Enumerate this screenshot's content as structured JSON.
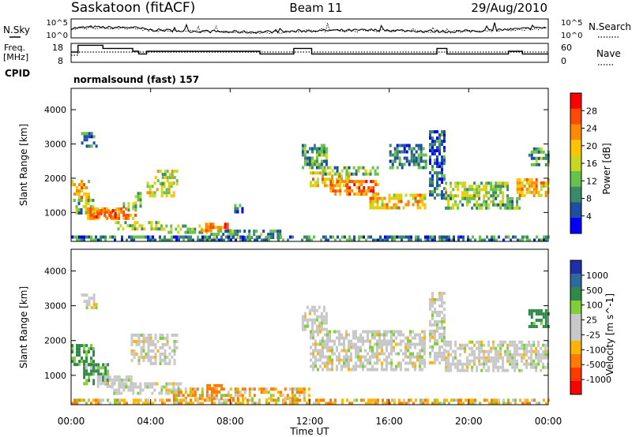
{
  "header": {
    "station": "Saskatoon (fitACF)",
    "beam": "Beam 11",
    "date": "29/Aug/2010"
  },
  "top_panels": {
    "nsky_label": "N.Sky",
    "nsky_ticks": [
      "10^5",
      "10^0"
    ],
    "nsearch_label": "N.Search",
    "nsearch_ticks": [
      "10^5",
      "10^0"
    ],
    "freq_label_1": "Freq.",
    "freq_label_2": "[MHz]",
    "freq_ticks": [
      "18",
      "8"
    ],
    "freq_ylim": [
      8,
      18
    ],
    "nave_label": "Nave",
    "nave_ticks": [
      "60",
      "0"
    ],
    "nave_ylim": [
      0,
      60
    ],
    "cpid_label": "CPID",
    "cpid_value": "normalsound (fast) 157"
  },
  "colors": {
    "power_scale": [
      "#0000ff",
      "#1d4fa0",
      "#3a8a6a",
      "#66c24a",
      "#c8d820",
      "#ffc400",
      "#ff8a00",
      "#ff4a00",
      "#ff0000"
    ],
    "velocity_scale": [
      "#1f2fa8",
      "#2e6aa0",
      "#2f8a4a",
      "#7fcf3a",
      "#c8c8c8",
      "#c8c8c8",
      "#ffb400",
      "#ff7a00",
      "#ff3a00",
      "#ff0000"
    ]
  },
  "chart_data": [
    {
      "type": "line",
      "name": "nsky-nsearch-panel",
      "x": [
        0,
        1,
        2,
        3,
        4,
        5,
        6,
        7,
        8,
        9,
        10,
        11,
        12,
        13,
        14,
        15,
        16,
        17,
        18,
        19,
        20,
        21,
        22,
        23,
        24
      ],
      "series": [
        {
          "name": "N.Sky",
          "values": [
            2.4,
            2.8,
            2.6,
            2.7,
            1.9,
            1.7,
            1.5,
            1.4,
            1.3,
            1.2,
            1.3,
            1.4,
            1.6,
            1.7,
            1.7,
            1.8,
            1.8,
            1.6,
            1.5,
            1.4,
            1.5,
            1.7,
            2.0,
            2.3,
            2.6
          ]
        },
        {
          "name": "N.Search",
          "values": [
            2.2,
            2.6,
            2.5,
            2.5,
            1.8,
            1.6,
            1.4,
            1.3,
            1.2,
            1.1,
            1.2,
            1.3,
            1.5,
            1.6,
            1.6,
            1.7,
            1.7,
            1.5,
            1.4,
            1.3,
            1.4,
            1.6,
            1.9,
            2.2,
            2.5
          ]
        }
      ],
      "ylim": [
        0,
        5
      ]
    },
    {
      "type": "line",
      "name": "freq-nave-panel",
      "xlim": [
        0,
        24
      ],
      "freq_steps": [
        [
          0,
          13.5
        ],
        [
          0.35,
          17.8
        ],
        [
          1.6,
          15.8
        ],
        [
          3.1,
          14.0
        ],
        [
          3.4,
          12.3
        ],
        [
          3.8,
          14.0
        ],
        [
          9.5,
          12.3
        ],
        [
          10.8,
          12.3
        ],
        [
          11.2,
          15.8
        ],
        [
          12.1,
          12.3
        ],
        [
          17.8,
          12.3
        ],
        [
          18.4,
          15.8
        ],
        [
          18.9,
          12.3
        ],
        [
          21.5,
          12.3
        ],
        [
          22.0,
          14.0
        ],
        [
          22.7,
          12.3
        ],
        [
          24.0,
          12.3
        ]
      ],
      "nave_steps": [
        [
          0,
          21
        ],
        [
          0.35,
          33
        ],
        [
          24.0,
          33
        ]
      ],
      "freq_ylim": [
        8,
        18
      ],
      "nave_ylim": [
        0,
        60
      ]
    },
    {
      "type": "heatmap",
      "name": "power",
      "xlabel": "",
      "ylabel": "Slant Range [km]",
      "xlim": [
        0,
        24
      ],
      "ylim": [
        180,
        4600
      ],
      "yticks": [
        1000,
        2000,
        3000,
        4000
      ],
      "colorbar_label": "Power [dB]",
      "colorbar_ticks": [
        "28",
        "24",
        "20",
        "16",
        "12",
        "8",
        "4"
      ],
      "colorbar_range": [
        0,
        32
      ],
      "regions": [
        {
          "t": [
            0.0,
            0.9
          ],
          "r": [
            1350,
            1950
          ],
          "v": 20
        },
        {
          "t": [
            0.1,
            1.1
          ],
          "r": [
            1000,
            1400
          ],
          "v": 12
        },
        {
          "t": [
            0.8,
            3.2
          ],
          "r": [
            800,
            1150
          ],
          "v": 22
        },
        {
          "t": [
            1.1,
            2.2
          ],
          "r": [
            880,
            1100
          ],
          "v": 28
        },
        {
          "t": [
            0.5,
            1.3
          ],
          "r": [
            2900,
            3350
          ],
          "v": 8
        },
        {
          "t": [
            2.6,
            3.2
          ],
          "r": [
            1100,
            1300
          ],
          "v": 14
        },
        {
          "t": [
            3.2,
            3.5
          ],
          "r": [
            1050,
            1600
          ],
          "v": 14
        },
        {
          "t": [
            3.8,
            5.2
          ],
          "r": [
            1500,
            1900
          ],
          "v": 18
        },
        {
          "t": [
            4.2,
            5.3
          ],
          "r": [
            1800,
            2250
          ],
          "v": 16
        },
        {
          "t": [
            2.2,
            4.5
          ],
          "r": [
            500,
            750
          ],
          "v": 14
        },
        {
          "t": [
            4.5,
            7.0
          ],
          "r": [
            400,
            650
          ],
          "v": 12
        },
        {
          "t": [
            6.5,
            8.0
          ],
          "r": [
            480,
            700
          ],
          "v": 24
        },
        {
          "t": [
            7.0,
            10.5
          ],
          "r": [
            300,
            500
          ],
          "v": 10
        },
        {
          "t": [
            8.2,
            8.6
          ],
          "r": [
            1050,
            1250
          ],
          "v": 6
        },
        {
          "t": [
            0.0,
            24.0
          ],
          "r": [
            200,
            330
          ],
          "v": 8
        },
        {
          "t": [
            11.6,
            12.8
          ],
          "r": [
            2300,
            3000
          ],
          "v": 10
        },
        {
          "t": [
            12.0,
            14.0
          ],
          "r": [
            1800,
            2200
          ],
          "v": 20
        },
        {
          "t": [
            13.0,
            15.5
          ],
          "r": [
            1500,
            1950
          ],
          "v": 24
        },
        {
          "t": [
            15.0,
            17.8
          ],
          "r": [
            1100,
            1550
          ],
          "v": 20
        },
        {
          "t": [
            12.5,
            15.5
          ],
          "r": [
            2100,
            2350
          ],
          "v": 12
        },
        {
          "t": [
            16.0,
            17.8
          ],
          "r": [
            2300,
            3000
          ],
          "v": 8
        },
        {
          "t": [
            18.0,
            18.8
          ],
          "r": [
            1400,
            3400
          ],
          "v": 6
        },
        {
          "t": [
            18.8,
            22.0
          ],
          "r": [
            1500,
            1900
          ],
          "v": 14
        },
        {
          "t": [
            18.8,
            22.5
          ],
          "r": [
            1100,
            1450
          ],
          "v": 12
        },
        {
          "t": [
            22.4,
            24.0
          ],
          "r": [
            1500,
            2000
          ],
          "v": 20
        },
        {
          "t": [
            23.0,
            24.0
          ],
          "r": [
            2400,
            2900
          ],
          "v": 10
        }
      ]
    },
    {
      "type": "heatmap",
      "name": "velocity",
      "xlabel": "Time UT",
      "ylabel": "Slant Range [km]",
      "xlim": [
        0,
        24
      ],
      "ylim": [
        180,
        4600
      ],
      "yticks": [
        1000,
        2000,
        3000,
        4000
      ],
      "xticks": [
        "00:00",
        "04:00",
        "08:00",
        "12:00",
        "16:00",
        "20:00",
        "00:00"
      ],
      "colorbar_label": "Velocity [m s^-1]",
      "colorbar_ticks": [
        "1000",
        "500",
        "100",
        "25",
        "-25",
        "-100",
        "-500",
        "-1000"
      ],
      "regions": [
        {
          "t": [
            0.0,
            1.1
          ],
          "r": [
            1300,
            1900
          ],
          "v": 150
        },
        {
          "t": [
            0.6,
            1.8
          ],
          "r": [
            800,
            1350
          ],
          "v": 120
        },
        {
          "t": [
            1.3,
            3.0
          ],
          "r": [
            700,
            1000
          ],
          "v": 0
        },
        {
          "t": [
            0.5,
            1.3
          ],
          "r": [
            2900,
            3350
          ],
          "v": 0
        },
        {
          "t": [
            3.0,
            5.3
          ],
          "r": [
            1300,
            2200
          ],
          "v": 0
        },
        {
          "t": [
            2.0,
            5.5
          ],
          "r": [
            500,
            800
          ],
          "v": 0
        },
        {
          "t": [
            5.0,
            12.0
          ],
          "r": [
            300,
            650
          ],
          "v": -60
        },
        {
          "t": [
            6.8,
            7.6
          ],
          "r": [
            500,
            750
          ],
          "v": -300
        },
        {
          "t": [
            0.0,
            24.0
          ],
          "r": [
            200,
            330
          ],
          "v": -60
        },
        {
          "t": [
            11.6,
            12.8
          ],
          "r": [
            2300,
            3000
          ],
          "v": 0
        },
        {
          "t": [
            12.0,
            17.8
          ],
          "r": [
            1200,
            2300
          ],
          "v": 0
        },
        {
          "t": [
            18.0,
            18.8
          ],
          "r": [
            1400,
            3400
          ],
          "v": 0
        },
        {
          "t": [
            18.8,
            24.0
          ],
          "r": [
            1100,
            2000
          ],
          "v": 0
        },
        {
          "t": [
            23.0,
            24.0
          ],
          "r": [
            2400,
            2900
          ],
          "v": 200
        }
      ]
    }
  ]
}
